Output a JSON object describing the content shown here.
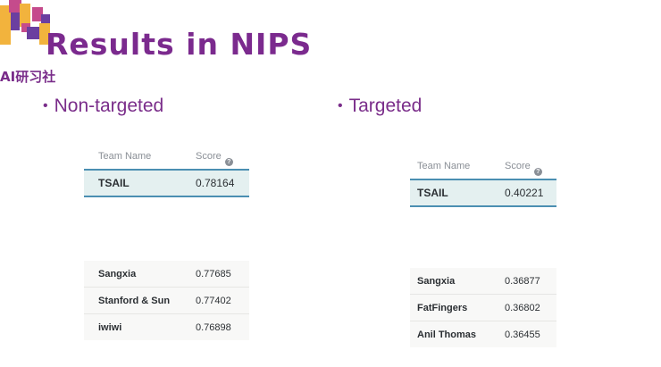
{
  "logo": {
    "sub_text": "AI研习社"
  },
  "slide": {
    "title": "Results in NIPS"
  },
  "sections": {
    "left": {
      "bullet": "Non-targeted",
      "header": {
        "name": "Team Name",
        "score": "Score"
      },
      "top": {
        "name": "TSAIL",
        "score": "0.78164"
      },
      "rows": [
        {
          "name": "Sangxia",
          "score": "0.77685"
        },
        {
          "name": "Stanford & Sun",
          "score": "0.77402"
        },
        {
          "name": "iwiwi",
          "score": "0.76898"
        }
      ]
    },
    "right": {
      "bullet": "Targeted",
      "header": {
        "name": "Team Name",
        "score": "Score"
      },
      "top": {
        "name": "TSAIL",
        "score": "0.40221"
      },
      "rows": [
        {
          "name": "Sangxia",
          "score": "0.36877"
        },
        {
          "name": "FatFingers",
          "score": "0.36802"
        },
        {
          "name": "Anil Thomas",
          "score": "0.36455"
        }
      ]
    }
  },
  "colors": {
    "title": "#7b2a8e",
    "accent_border": "#4b8fb2",
    "highlight_row": "#e4f0f0"
  }
}
